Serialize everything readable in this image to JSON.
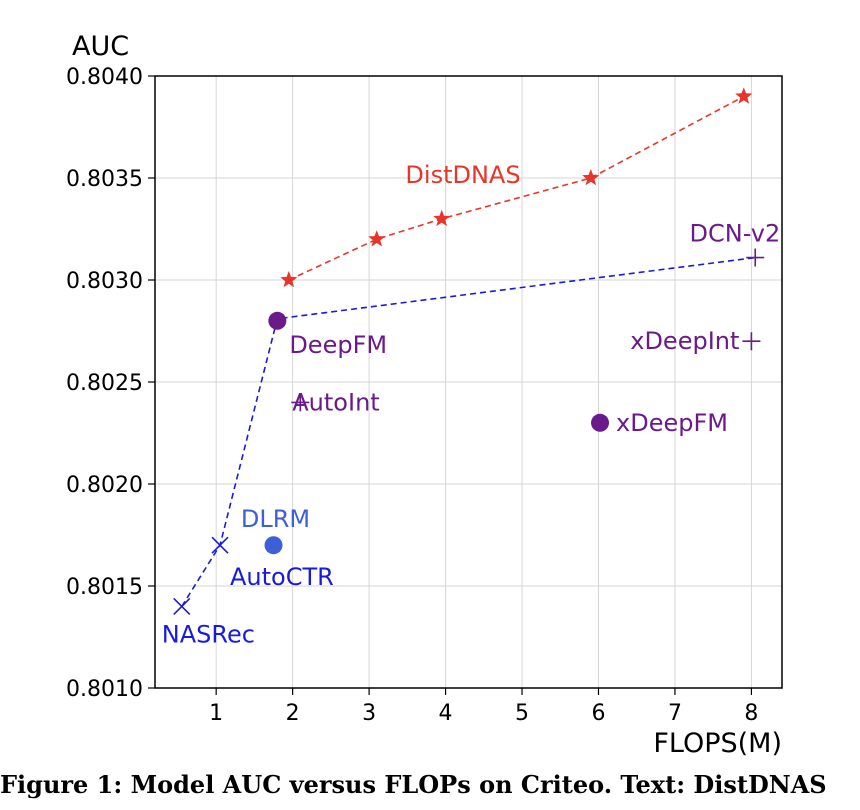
{
  "chart_data": {
    "type": "scatter",
    "title": "",
    "xlabel": "FLOPS(M)",
    "ylabel": "AUC",
    "xlim": [
      0.2,
      8.4
    ],
    "ylim": [
      0.801,
      0.804
    ],
    "xticks": [
      1,
      2,
      3,
      4,
      5,
      6,
      7,
      8
    ],
    "yticks": [
      0.801,
      0.8015,
      0.802,
      0.8025,
      0.803,
      0.8035,
      0.804
    ],
    "ytick_labels": [
      "0.8010",
      "0.8015",
      "0.8020",
      "0.8025",
      "0.8030",
      "0.8035",
      "0.8040"
    ],
    "grid": true,
    "legend": "none",
    "series": [
      {
        "name": "DistDNAS",
        "color": "#e8352a",
        "marker": "star",
        "line": "dashed",
        "points": [
          {
            "x": 1.95,
            "y": 0.803
          },
          {
            "x": 3.1,
            "y": 0.8032
          },
          {
            "x": 3.95,
            "y": 0.8033
          },
          {
            "x": 5.9,
            "y": 0.8035
          },
          {
            "x": 7.9,
            "y": 0.8039
          }
        ]
      },
      {
        "name": "",
        "color": "#1a1adf",
        "marker": "none",
        "line": "dashed",
        "points": [
          {
            "x": 0.55,
            "y": 0.8014
          },
          {
            "x": 1.05,
            "y": 0.8017
          },
          {
            "x": 1.8,
            "y": 0.80281
          },
          {
            "x": 8.05,
            "y": 0.80311
          }
        ]
      }
    ],
    "models": [
      {
        "label": "DeepFM",
        "x": 1.8,
        "y": 0.8028,
        "marker": "circle",
        "color": "#6a1a8a"
      },
      {
        "label": "AutoInt",
        "x": 2.1,
        "y": 0.8024,
        "marker": "plus",
        "color": "#6a1a8a"
      },
      {
        "label": "xDeepFM",
        "x": 6.02,
        "y": 0.8023,
        "marker": "circle",
        "color": "#6a1a8a"
      },
      {
        "label": "xDeepInt",
        "x": 8.0,
        "y": 0.8027,
        "marker": "plus",
        "color": "#6a1a8a"
      },
      {
        "label": "DCN-v2",
        "x": 8.05,
        "y": 0.80311,
        "marker": "plus",
        "color": "#6a1a8a"
      },
      {
        "label": "DLRM",
        "x": 1.75,
        "y": 0.8017,
        "marker": "circle",
        "color": "#3d5fd8"
      },
      {
        "label": "AutoCTR",
        "x": 1.05,
        "y": 0.8017,
        "marker": "x",
        "color": "#1a1adf"
      },
      {
        "label": "NASRec",
        "x": 0.55,
        "y": 0.8014,
        "marker": "x",
        "color": "#1a1adf"
      }
    ],
    "annotations": [
      {
        "text": "DistDNAS",
        "color": "#e8352a"
      }
    ]
  },
  "caption": "Figure 1: Model AUC versus FLOPs on Criteo. Text: DistDNAS"
}
